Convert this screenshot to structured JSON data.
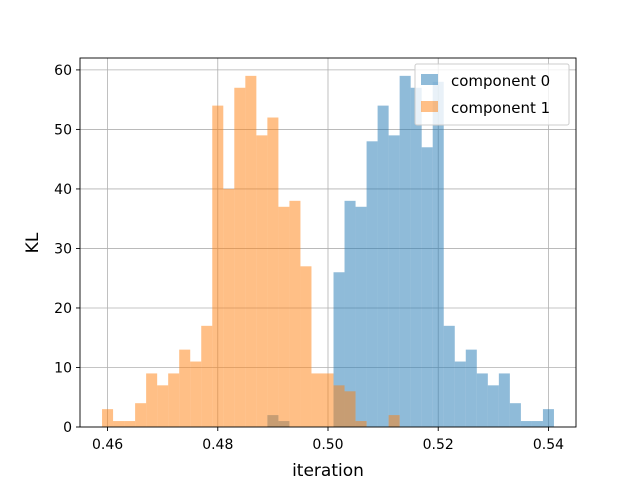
{
  "chart_data": {
    "type": "histogram",
    "xlabel": "iteration",
    "ylabel": "KL",
    "xlim": [
      0.455,
      0.545
    ],
    "ylim": [
      0,
      62
    ],
    "bin_start": 0.459,
    "bin_width": 0.002,
    "grid": true,
    "legend_position": "top-right",
    "xticks": [
      "0.46",
      "0.48",
      "0.50",
      "0.52",
      "0.54"
    ],
    "xtick_values": [
      0.46,
      0.48,
      0.5,
      0.52,
      0.54
    ],
    "yticks": [
      "0",
      "10",
      "20",
      "30",
      "40",
      "50",
      "60"
    ],
    "ytick_values": [
      0,
      10,
      20,
      30,
      40,
      50,
      60
    ],
    "series": [
      {
        "name": "component 0",
        "color": "#1f77b4",
        "alpha": 0.5,
        "counts": [
          0,
          0,
          0,
          0,
          0,
          0,
          0,
          0,
          0,
          0,
          0,
          0,
          0,
          0,
          0,
          2,
          1,
          0,
          0,
          0,
          0,
          26,
          38,
          37,
          48,
          54,
          49,
          59,
          57,
          47,
          58,
          17,
          11,
          13,
          9,
          7,
          9,
          4,
          1,
          1,
          3
        ]
      },
      {
        "name": "component 1",
        "color": "#ff7f0e",
        "alpha": 0.5,
        "counts": [
          3,
          1,
          1,
          4,
          9,
          7,
          9,
          13,
          11,
          17,
          54,
          40,
          57,
          59,
          49,
          52,
          37,
          38,
          27,
          9,
          9,
          7,
          6,
          1,
          0,
          0,
          2,
          0,
          0,
          0,
          0,
          0,
          0,
          0,
          0,
          0,
          0,
          0,
          0,
          0,
          0
        ]
      }
    ]
  }
}
